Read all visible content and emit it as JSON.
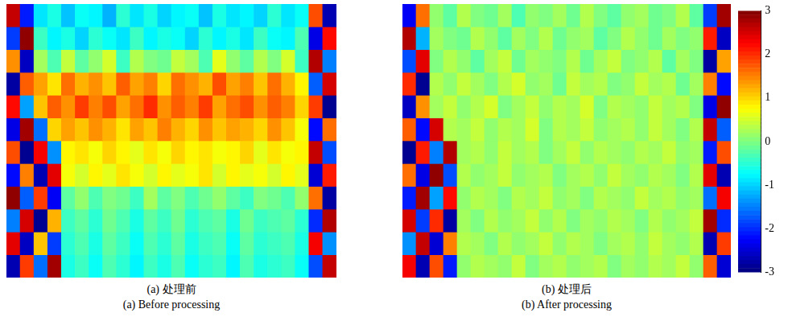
{
  "chart_data": [
    {
      "type": "heatmap",
      "title": "(a) 处理前",
      "subtitle": "(a) Before processing",
      "tick_labels": false,
      "cells": [
        [
          2.6,
          -2.1,
          -0.9,
          -0.6,
          -1.1,
          -0.7,
          -0.8,
          -1.2,
          -0.5,
          -0.9,
          -0.6,
          -1.0,
          -0.8,
          -0.7,
          -1.1,
          -0.6,
          -0.9,
          -0.8,
          -1.0,
          -0.5,
          -0.9,
          -0.7,
          1.8,
          -2.7
        ],
        [
          -1.9,
          2.9,
          -0.4,
          -0.8,
          -0.6,
          -1.0,
          -0.5,
          -0.7,
          -0.9,
          -0.4,
          -0.8,
          -0.6,
          -0.7,
          -1.0,
          -0.5,
          -0.8,
          -0.6,
          -0.9,
          -0.4,
          -0.7,
          -0.8,
          -0.3,
          -2.4,
          2.2
        ],
        [
          1.4,
          -2.6,
          0.2,
          -0.3,
          0.4,
          -0.2,
          0.1,
          0.5,
          -0.4,
          0.3,
          0.0,
          -0.1,
          0.4,
          0.2,
          -0.3,
          0.6,
          0.1,
          -0.2,
          0.3,
          0.0,
          0.5,
          -0.4,
          2.7,
          -1.5
        ],
        [
          -2.8,
          1.7,
          1.3,
          0.9,
          1.6,
          1.2,
          1.4,
          1.1,
          1.7,
          1.3,
          1.5,
          1.0,
          1.6,
          1.4,
          1.2,
          1.8,
          1.3,
          1.5,
          1.1,
          1.6,
          1.2,
          0.8,
          -1.7,
          2.5
        ],
        [
          2.2,
          -1.3,
          1.1,
          1.7,
          1.4,
          1.9,
          1.5,
          1.8,
          1.3,
          1.6,
          2.0,
          1.4,
          1.7,
          1.5,
          1.9,
          1.3,
          1.6,
          1.8,
          1.4,
          1.7,
          1.5,
          1.0,
          1.9,
          -2.9
        ],
        [
          -2.4,
          2.8,
          -1.6,
          1.0,
          1.3,
          1.1,
          1.4,
          1.2,
          0.9,
          1.3,
          1.1,
          1.5,
          1.2,
          1.0,
          1.4,
          1.1,
          1.3,
          1.2,
          1.0,
          1.4,
          1.1,
          0.7,
          -2.2,
          1.6
        ],
        [
          1.8,
          -2.9,
          2.3,
          -1.4,
          0.8,
          0.9,
          0.7,
          1.0,
          0.8,
          0.6,
          0.9,
          0.7,
          1.0,
          0.8,
          0.9,
          0.7,
          0.8,
          1.0,
          0.6,
          0.9,
          0.7,
          0.8,
          2.6,
          -1.8
        ],
        [
          -2.2,
          1.5,
          -2.7,
          2.4,
          0.7,
          0.5,
          0.8,
          0.6,
          0.9,
          0.7,
          0.5,
          0.8,
          0.6,
          0.7,
          0.9,
          0.5,
          0.8,
          0.6,
          0.7,
          0.5,
          0.8,
          0.6,
          -2.5,
          2.1
        ],
        [
          2.9,
          -1.7,
          1.9,
          -2.3,
          -0.2,
          0.1,
          -0.3,
          0.0,
          -0.1,
          -0.4,
          0.2,
          -0.2,
          0.0,
          -0.3,
          -0.1,
          0.1,
          -0.2,
          -0.4,
          0.0,
          -0.1,
          -0.3,
          0.1,
          1.6,
          -2.8
        ],
        [
          -1.5,
          2.5,
          -2.9,
          1.2,
          -0.4,
          -0.2,
          -0.5,
          -0.1,
          -0.3,
          -0.6,
          -0.2,
          -0.4,
          -0.1,
          -0.5,
          -0.3,
          -0.2,
          -0.6,
          -0.1,
          -0.4,
          -0.3,
          -0.2,
          -0.5,
          -2.0,
          2.7
        ],
        [
          2.4,
          -2.6,
          1.1,
          -1.9,
          -0.5,
          -0.3,
          -0.6,
          -0.2,
          -0.4,
          -0.7,
          -0.3,
          -0.5,
          -0.2,
          -0.6,
          -0.4,
          -0.3,
          -0.7,
          -0.2,
          -0.5,
          -0.4,
          -0.3,
          -0.6,
          2.3,
          -1.4
        ],
        [
          -2.7,
          1.9,
          -1.6,
          2.8,
          -0.6,
          -0.4,
          -0.7,
          -0.3,
          -0.5,
          -0.8,
          -0.4,
          -0.6,
          -0.3,
          -0.7,
          -0.5,
          -0.4,
          -0.8,
          -0.3,
          -0.6,
          -0.5,
          -0.4,
          -0.7,
          -1.8,
          2.6
        ]
      ]
    },
    {
      "type": "heatmap",
      "title": "(b) 处理后",
      "subtitle": "(b) After processing",
      "tick_labels": false,
      "cells": [
        [
          -2.3,
          1.6,
          0.1,
          -0.2,
          0.3,
          0.0,
          -0.1,
          0.2,
          -0.3,
          0.1,
          0.0,
          0.2,
          -0.1,
          0.3,
          0.0,
          -0.2,
          0.1,
          0.2,
          -0.1,
          0.0,
          0.3,
          -0.2,
          -1.9,
          2.8
        ],
        [
          2.7,
          -1.2,
          0.2,
          0.0,
          -0.1,
          0.3,
          0.1,
          -0.2,
          0.2,
          0.0,
          0.3,
          -0.1,
          0.1,
          0.2,
          -0.2,
          0.0,
          0.3,
          0.1,
          -0.1,
          0.2,
          0.0,
          0.1,
          2.1,
          -2.6
        ],
        [
          -1.8,
          2.4,
          0.0,
          0.3,
          0.1,
          -0.2,
          0.2,
          0.4,
          -0.1,
          0.2,
          0.1,
          0.0,
          0.3,
          -0.1,
          0.2,
          0.4,
          0.0,
          0.1,
          0.3,
          -0.2,
          0.2,
          0.0,
          -2.8,
          1.3
        ],
        [
          2.0,
          -2.9,
          0.3,
          0.1,
          0.4,
          0.2,
          0.0,
          0.3,
          0.5,
          0.1,
          0.2,
          -0.1,
          0.4,
          0.2,
          0.3,
          0.0,
          0.1,
          0.4,
          0.2,
          0.3,
          -0.1,
          0.2,
          1.5,
          -2.2
        ],
        [
          -2.6,
          1.4,
          0.2,
          0.4,
          0.1,
          0.3,
          0.5,
          0.0,
          0.2,
          0.4,
          0.1,
          0.3,
          0.2,
          0.5,
          0.0,
          0.3,
          0.2,
          0.1,
          0.4,
          0.2,
          0.3,
          0.0,
          -2.4,
          2.9
        ],
        [
          1.7,
          -2.2,
          2.5,
          0.3,
          0.2,
          0.4,
          0.1,
          0.3,
          0.2,
          0.5,
          0.0,
          0.3,
          0.2,
          0.4,
          0.1,
          0.2,
          0.3,
          0.1,
          0.4,
          0.2,
          0.0,
          0.3,
          2.6,
          -1.7
        ],
        [
          -2.9,
          2.1,
          -1.5,
          2.7,
          0.2,
          0.3,
          0.1,
          0.4,
          0.2,
          0.3,
          0.0,
          0.2,
          0.4,
          0.1,
          0.3,
          0.2,
          0.1,
          0.3,
          0.2,
          0.4,
          0.1,
          0.2,
          -2.1,
          1.8
        ],
        [
          1.6,
          -2.4,
          2.9,
          -1.8,
          0.3,
          0.1,
          0.2,
          0.4,
          0.1,
          0.2,
          0.3,
          0.0,
          0.2,
          0.3,
          0.1,
          0.4,
          0.2,
          0.1,
          0.3,
          0.2,
          0.0,
          0.3,
          2.4,
          -2.7
        ],
        [
          -2.1,
          2.8,
          -1.3,
          2.2,
          0.1,
          0.3,
          0.2,
          0.0,
          0.3,
          0.2,
          0.4,
          0.1,
          0.2,
          0.0,
          0.3,
          0.2,
          0.1,
          0.4,
          0.2,
          0.3,
          0.1,
          0.2,
          -1.6,
          2.3
        ],
        [
          2.5,
          -1.9,
          2.0,
          -2.8,
          0.2,
          0.0,
          0.3,
          0.1,
          0.2,
          0.4,
          0.1,
          0.3,
          0.0,
          0.2,
          0.1,
          0.3,
          0.2,
          0.0,
          0.3,
          0.1,
          0.2,
          0.4,
          2.8,
          -2.0
        ],
        [
          -1.4,
          2.6,
          -2.5,
          1.5,
          0.3,
          0.2,
          0.0,
          0.3,
          0.1,
          0.2,
          0.4,
          0.1,
          0.3,
          0.2,
          0.0,
          0.2,
          0.3,
          0.1,
          0.4,
          0.2,
          0.1,
          0.3,
          -2.7,
          1.9
        ],
        [
          2.3,
          -2.7,
          1.8,
          -2.1,
          0.1,
          0.3,
          0.2,
          0.1,
          0.4,
          0.0,
          0.2,
          0.3,
          0.1,
          0.2,
          0.3,
          0.0,
          0.2,
          0.1,
          0.3,
          0.2,
          0.4,
          0.1,
          1.7,
          -2.5
        ]
      ],
      "colorbar": {
        "range": [
          -3,
          3
        ],
        "ticks": [
          -3,
          -2,
          -1,
          0,
          1,
          2,
          3
        ]
      }
    }
  ]
}
